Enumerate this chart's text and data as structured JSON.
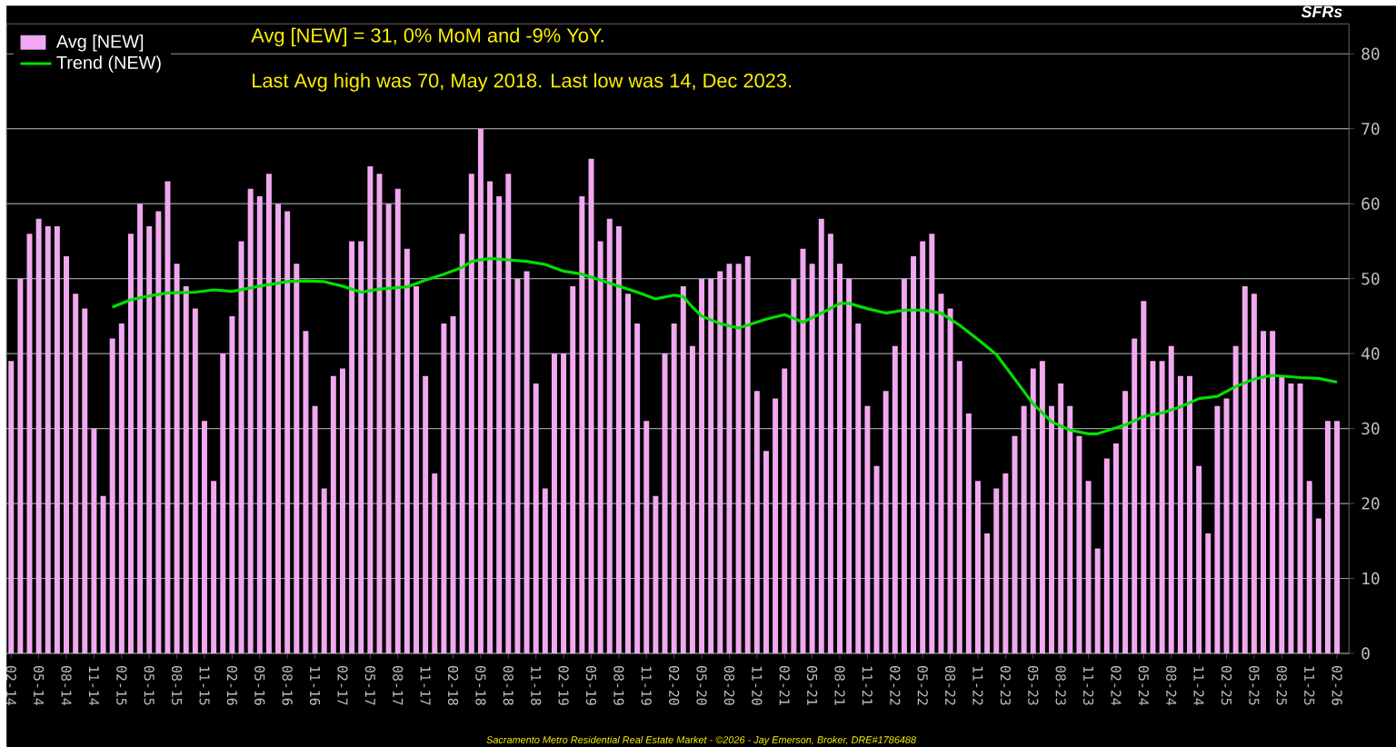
{
  "chart_data": {
    "type": "bar",
    "annotations": [
      "Avg [NEW] = 31, 0% MoM and -9% YoY.",
      "Last Avg high was 70, May 2018. Last low was 14, Dec 2023.",
      "Sacramento Metro Residential Real Estate Market - ©2026 - Jay Emerson, Broker, DRE#1786488"
    ],
    "ylabel": "SFRs",
    "x": [
      "2014-02",
      "2014-03",
      "2014-04",
      "2014-05",
      "2014-06",
      "2014-07",
      "2014-08",
      "2014-09",
      "2014-10",
      "2014-11",
      "2014-12",
      "2015-01",
      "2015-02",
      "2015-03",
      "2015-04",
      "2015-05",
      "2015-06",
      "2015-07",
      "2015-08",
      "2015-09",
      "2015-10",
      "2015-11",
      "2015-12",
      "2016-01",
      "2016-02",
      "2016-03",
      "2016-04",
      "2016-05",
      "2016-06",
      "2016-07",
      "2016-08",
      "2016-09",
      "2016-10",
      "2016-11",
      "2016-12",
      "2017-01",
      "2017-02",
      "2017-03",
      "2017-04",
      "2017-05",
      "2017-06",
      "2017-07",
      "2017-08",
      "2017-09",
      "2017-10",
      "2017-11",
      "2017-12",
      "2018-01",
      "2018-02",
      "2018-03",
      "2018-04",
      "2018-05",
      "2018-06",
      "2018-07",
      "2018-08",
      "2018-09",
      "2018-10",
      "2018-11",
      "2018-12",
      "2019-01",
      "2019-02",
      "2019-03",
      "2019-04",
      "2019-05",
      "2019-06",
      "2019-07",
      "2019-08",
      "2019-09",
      "2019-10",
      "2019-11",
      "2019-12",
      "2020-01",
      "2020-02",
      "2020-03",
      "2020-04",
      "2020-05",
      "2020-06",
      "2020-07",
      "2020-08",
      "2020-09",
      "2020-10",
      "2020-11",
      "2020-12",
      "2021-01",
      "2021-02",
      "2021-03",
      "2021-04",
      "2021-05",
      "2021-06",
      "2021-07",
      "2021-08",
      "2021-09",
      "2021-10",
      "2021-11",
      "2021-12",
      "2022-01",
      "2022-02",
      "2022-03",
      "2022-04",
      "2022-05",
      "2022-06",
      "2022-07",
      "2022-08",
      "2022-09",
      "2022-10",
      "2022-11",
      "2022-12",
      "2023-01",
      "2023-02",
      "2023-03",
      "2023-04",
      "2023-05",
      "2023-06",
      "2023-07",
      "2023-08",
      "2023-09",
      "2023-10",
      "2023-11",
      "2023-12",
      "2024-01",
      "2024-02",
      "2024-03",
      "2024-04",
      "2024-05",
      "2024-06",
      "2024-07",
      "2024-08",
      "2024-09",
      "2024-10",
      "2024-11",
      "2024-12",
      "2025-01",
      "2025-02",
      "2025-03",
      "2025-04",
      "2025-05",
      "2025-06",
      "2025-07",
      "2025-08",
      "2025-09",
      "2025-10",
      "2025-11",
      "2025-12",
      "2026-01",
      "2026-02"
    ],
    "series": [
      {
        "name": "Avg [NEW]",
        "color": "#f0a8f0",
        "values": [
          39,
          50,
          56,
          58,
          57,
          57,
          53,
          48,
          46,
          30,
          21,
          42,
          44,
          56,
          60,
          57,
          59,
          63,
          52,
          49,
          46,
          31,
          23,
          40,
          45,
          55,
          62,
          61,
          64,
          60,
          59,
          52,
          43,
          33,
          22,
          37,
          38,
          55,
          55,
          65,
          64,
          60,
          62,
          54,
          49,
          37,
          24,
          44,
          45,
          56,
          64,
          70,
          63,
          61,
          64,
          50,
          51,
          36,
          22,
          40,
          40,
          49,
          61,
          66,
          55,
          58,
          57,
          48,
          44,
          31,
          21,
          40,
          44,
          49,
          41,
          50,
          50,
          51,
          52,
          52,
          53,
          35,
          27,
          34,
          38,
          50,
          54,
          52,
          58,
          56,
          52,
          50,
          44,
          33,
          25,
          35,
          41,
          50,
          53,
          55,
          56,
          48,
          46,
          39,
          32,
          23,
          16,
          22,
          24,
          29,
          33,
          38,
          39,
          33,
          36,
          33,
          29,
          23,
          14,
          26,
          28,
          35,
          42,
          47,
          39,
          39,
          41,
          37,
          37,
          25,
          16,
          33,
          34,
          41,
          49,
          48,
          43,
          43,
          37,
          36,
          36,
          23,
          18,
          31,
          31
        ]
      },
      {
        "name": "Trend (NEW)",
        "type": "line",
        "color": "#00e000",
        "x": [
          "2015-01",
          "2015-03",
          "2015-05",
          "2015-07",
          "2015-10",
          "2015-12",
          "2016-02",
          "2016-05",
          "2016-08",
          "2016-10",
          "2016-12",
          "2017-02",
          "2017-04",
          "2017-06",
          "2017-09",
          "2017-11",
          "2018-01",
          "2018-03",
          "2018-04",
          "2018-06",
          "2018-08",
          "2018-10",
          "2018-12",
          "2019-02",
          "2019-04",
          "2019-06",
          "2019-08",
          "2019-10",
          "2019-12",
          "2020-02",
          "2020-03",
          "2020-04",
          "2020-05",
          "2020-07",
          "2020-09",
          "2020-10",
          "2020-12",
          "2021-02",
          "2021-04",
          "2021-06",
          "2021-08",
          "2021-09",
          "2021-11",
          "2022-01",
          "2022-03",
          "2022-05",
          "2022-07",
          "2022-09",
          "2022-11",
          "2023-01",
          "2023-03",
          "2023-05",
          "2023-07",
          "2023-09",
          "2023-11",
          "2023-12",
          "2024-01",
          "2024-03",
          "2024-05",
          "2024-07",
          "2024-09",
          "2024-11",
          "2025-01",
          "2025-03",
          "2025-05",
          "2025-07",
          "2025-08",
          "2025-10",
          "2025-12",
          "2026-02"
        ],
        "values": [
          46.2,
          47.2,
          47.7,
          48.1,
          48.2,
          48.5,
          48.3,
          49.0,
          49.6,
          49.7,
          49.6,
          49.0,
          48.2,
          48.6,
          48.9,
          49.8,
          50.6,
          51.5,
          52.3,
          52.7,
          52.5,
          52.3,
          51.9,
          51.0,
          50.6,
          49.8,
          49.0,
          48.2,
          47.3,
          47.8,
          47.6,
          46.2,
          45.0,
          44.0,
          43.4,
          43.8,
          44.6,
          45.2,
          44.2,
          45.4,
          46.7,
          46.7,
          46.0,
          45.4,
          45.8,
          45.8,
          45.4,
          43.8,
          41.9,
          39.9,
          36.6,
          33.3,
          30.9,
          29.8,
          29.3,
          29.3,
          29.7,
          30.5,
          31.6,
          32.1,
          32.9,
          34.0,
          34.3,
          35.6,
          36.6,
          37.1,
          37.0,
          36.8,
          36.7,
          36.2
        ]
      }
    ],
    "xlim": [
      "2014-01-16",
      "2026-03-10"
    ],
    "xticks": [
      {
        "value": "2014-02",
        "label": "02-14"
      },
      {
        "value": "2014-05",
        "label": "05-14"
      },
      {
        "value": "2014-08",
        "label": "08-14"
      },
      {
        "value": "2014-11",
        "label": "11-14"
      },
      {
        "value": "2015-02",
        "label": "02-15"
      },
      {
        "value": "2015-05",
        "label": "05-15"
      },
      {
        "value": "2015-08",
        "label": "08-15"
      },
      {
        "value": "2015-11",
        "label": "11-15"
      },
      {
        "value": "2016-02",
        "label": "02-16"
      },
      {
        "value": "2016-05",
        "label": "05-16"
      },
      {
        "value": "2016-08",
        "label": "08-16"
      },
      {
        "value": "2016-11",
        "label": "11-16"
      },
      {
        "value": "2017-02",
        "label": "02-17"
      },
      {
        "value": "2017-05",
        "label": "05-17"
      },
      {
        "value": "2017-08",
        "label": "08-17"
      },
      {
        "value": "2017-11",
        "label": "11-17"
      },
      {
        "value": "2018-02",
        "label": "02-18"
      },
      {
        "value": "2018-05",
        "label": "05-18"
      },
      {
        "value": "2018-08",
        "label": "08-18"
      },
      {
        "value": "2018-11",
        "label": "11-18"
      },
      {
        "value": "2019-02",
        "label": "02-19"
      },
      {
        "value": "2019-05",
        "label": "05-19"
      },
      {
        "value": "2019-08",
        "label": "08-19"
      },
      {
        "value": "2019-11",
        "label": "11-19"
      },
      {
        "value": "2020-02",
        "label": "02-20"
      },
      {
        "value": "2020-05",
        "label": "05-20"
      },
      {
        "value": "2020-08",
        "label": "08-20"
      },
      {
        "value": "2020-11",
        "label": "11-20"
      },
      {
        "value": "2021-02",
        "label": "02-21"
      },
      {
        "value": "2021-05",
        "label": "05-21"
      },
      {
        "value": "2021-08",
        "label": "08-21"
      },
      {
        "value": "2021-11",
        "label": "11-21"
      },
      {
        "value": "2022-02",
        "label": "02-22"
      },
      {
        "value": "2022-05",
        "label": "05-22"
      },
      {
        "value": "2022-08",
        "label": "08-22"
      },
      {
        "value": "2022-11",
        "label": "11-22"
      },
      {
        "value": "2023-02",
        "label": "02-23"
      },
      {
        "value": "2023-05",
        "label": "05-23"
      },
      {
        "value": "2023-08",
        "label": "08-23"
      },
      {
        "value": "2023-11",
        "label": "11-23"
      },
      {
        "value": "2024-02",
        "label": "02-24"
      },
      {
        "value": "2024-05",
        "label": "05-24"
      },
      {
        "value": "2024-08",
        "label": "08-24"
      },
      {
        "value": "2024-11",
        "label": "11-24"
      },
      {
        "value": "2025-02",
        "label": "02-25"
      },
      {
        "value": "2025-05",
        "label": "05-25"
      },
      {
        "value": "2025-08",
        "label": "08-25"
      },
      {
        "value": "2025-11",
        "label": "11-25"
      },
      {
        "value": "2026-02",
        "label": "02-26"
      }
    ],
    "ylim": [
      0,
      84
    ],
    "yticks": [
      0,
      10,
      20,
      30,
      40,
      50,
      60,
      70,
      80
    ],
    "grid": "y",
    "legend": "top left",
    "marker": "none",
    "line_style": "solid"
  }
}
